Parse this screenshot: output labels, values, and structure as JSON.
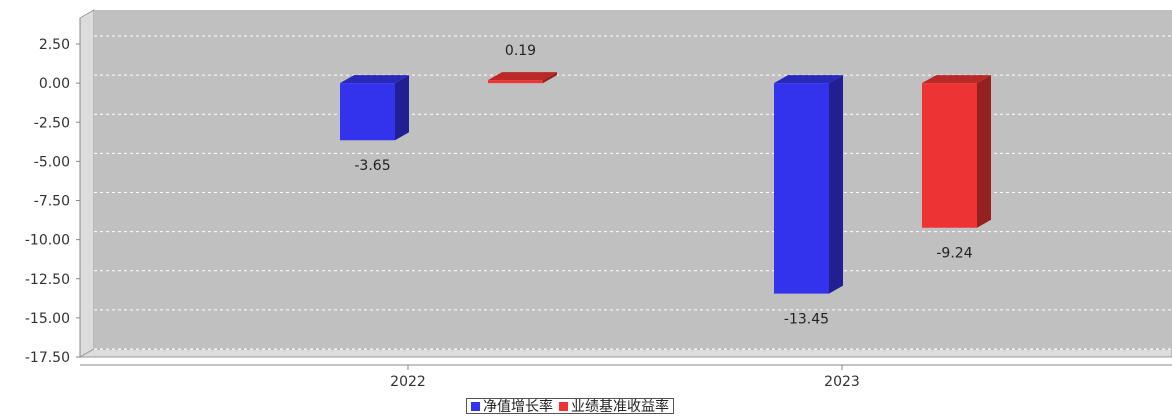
{
  "chart_data": {
    "type": "bar",
    "categories": [
      "2022",
      "2023"
    ],
    "series": [
      {
        "name": "净值增长率",
        "values": [
          -3.65,
          -13.45
        ],
        "color": "#3333ee",
        "labels": [
          "-3.65",
          "-13.45"
        ]
      },
      {
        "name": "业绩基准收益率",
        "values": [
          0.19,
          -9.24
        ],
        "color": "#ee3333",
        "labels": [
          "0.19",
          "-9.24"
        ]
      }
    ],
    "ylim": [
      -17.5,
      2.5
    ],
    "yticks": [
      "2.50",
      "0.00",
      "-2.50",
      "-5.00",
      "-7.50",
      "-10.00",
      "-12.50",
      "-15.00",
      "-17.50"
    ],
    "ytick_values": [
      2.5,
      0,
      -2.5,
      -5,
      -7.5,
      -10,
      -12.5,
      -15,
      -17.5
    ],
    "grid": true,
    "legend_position": "bottom-center",
    "style": "3d",
    "plot_background": "#c0c0c0"
  }
}
